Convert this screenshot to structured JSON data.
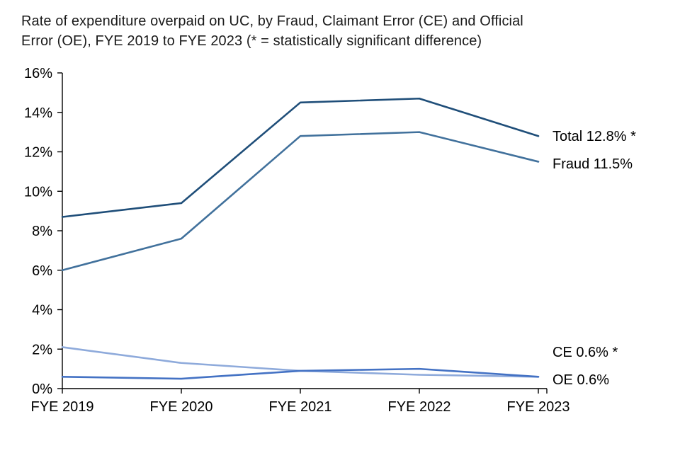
{
  "title": {
    "line1": "Rate of expenditure overpaid on UC, by Fraud, Claimant Error (CE) and Official",
    "line2": "Error (OE), FYE 2019 to FYE 2023 (* = statistically significant difference)"
  },
  "chart_data": {
    "type": "line",
    "title": "Rate of expenditure overpaid on UC, by Fraud, Claimant Error (CE) and Official Error (OE), FYE 2019 to FYE 2023 (* = statistically significant difference)",
    "categories": [
      "FYE 2019",
      "FYE 2020",
      "FYE 2021",
      "FYE 2022",
      "FYE 2023"
    ],
    "series": [
      {
        "name": "Total",
        "values": [
          8.7,
          9.4,
          14.5,
          14.7,
          12.8
        ],
        "color": "#1F4E79",
        "end_label": "Total 12.8% *",
        "label_at": 12.8
      },
      {
        "name": "Fraud",
        "values": [
          6.0,
          7.6,
          12.8,
          13.0,
          11.5
        ],
        "color": "#41719C",
        "end_label": "Fraud 11.5%",
        "label_at": 11.4
      },
      {
        "name": "CE",
        "values": [
          2.1,
          1.3,
          0.9,
          0.7,
          0.6
        ],
        "color": "#8EAADB",
        "end_label": "CE 0.6% *",
        "label_at": 1.87
      },
      {
        "name": "OE",
        "values": [
          0.6,
          0.5,
          0.9,
          1.0,
          0.6
        ],
        "color": "#4472C4",
        "end_label": "OE 0.6%",
        "label_at": 0.47
      }
    ],
    "xlabel": "",
    "ylabel": "",
    "ylim": [
      0,
      16
    ],
    "ytick_step": 2,
    "ytick_labels": [
      "0%",
      "2%",
      "4%",
      "6%",
      "8%",
      "10%",
      "12%",
      "14%",
      "16%"
    ],
    "grid": false,
    "axis_color": "#000000",
    "legend_position": "right-of-line-ends"
  }
}
